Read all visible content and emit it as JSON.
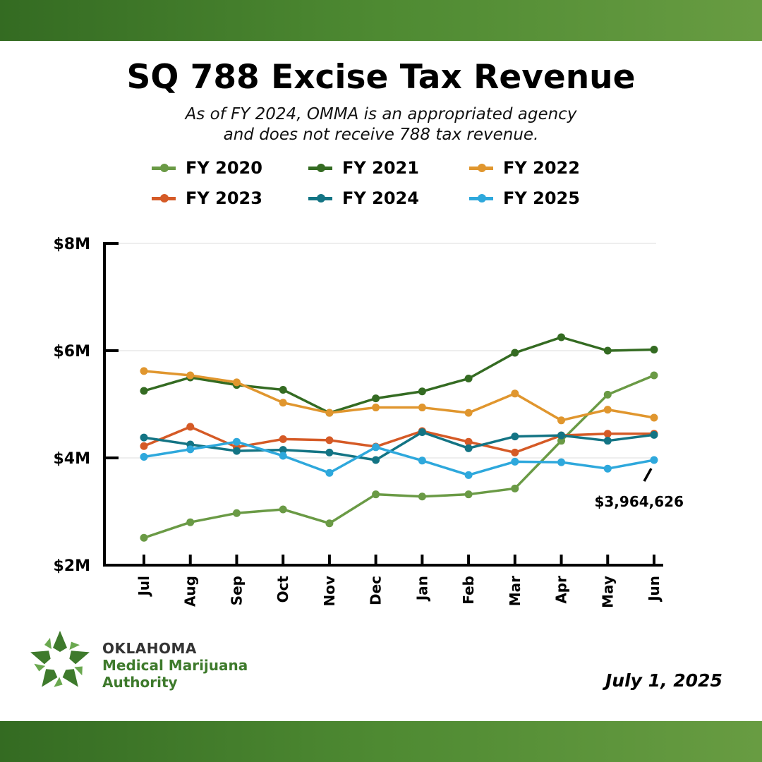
{
  "header": {
    "title": "SQ 788 Excise Tax Revenue",
    "subtitle_line1": "As of FY 2024, OMMA is an appropriated agency",
    "subtitle_line2": "and does not receive 788 tax revenue."
  },
  "footer": {
    "org_line1": "OKLAHOMA",
    "org_line2": "Medical Marijuana",
    "org_line3": "Authority",
    "date": "July 1, 2025"
  },
  "colors": {
    "band": "#4e8a32"
  },
  "chart_data": {
    "type": "line",
    "title": "SQ 788 Excise Tax Revenue",
    "categories": [
      "Jul",
      "Aug",
      "Sep",
      "Oct",
      "Nov",
      "Dec",
      "Jan",
      "Feb",
      "Mar",
      "Apr",
      "May",
      "Jun"
    ],
    "ylim": [
      2,
      8
    ],
    "yticks": [
      {
        "v": 8,
        "label": "$8M"
      },
      {
        "v": 6,
        "label": "$6M"
      },
      {
        "v": 4,
        "label": "$4M"
      },
      {
        "v": 2,
        "label": "$2M"
      }
    ],
    "grid": true,
    "legend_position": "top",
    "series": [
      {
        "name": "FY 2020",
        "color": "#6a9a45",
        "values": [
          2.51,
          2.8,
          2.97,
          3.04,
          2.78,
          3.32,
          3.28,
          3.32,
          3.43,
          4.32,
          5.18,
          5.54
        ]
      },
      {
        "name": "FY 2021",
        "color": "#346b22",
        "values": [
          5.25,
          5.5,
          5.36,
          5.27,
          4.84,
          5.11,
          5.24,
          5.48,
          5.96,
          6.25,
          6.0,
          6.02
        ]
      },
      {
        "name": "FY 2022",
        "color": "#e0962e",
        "values": [
          5.62,
          5.54,
          5.41,
          5.03,
          4.84,
          4.94,
          4.94,
          4.84,
          5.2,
          4.7,
          4.9,
          4.75
        ]
      },
      {
        "name": "FY 2023",
        "color": "#d55a26",
        "values": [
          4.22,
          4.58,
          4.2,
          4.35,
          4.33,
          4.21,
          4.5,
          4.3,
          4.1,
          4.42,
          4.45,
          4.45
        ]
      },
      {
        "name": "FY 2024",
        "color": "#137484",
        "values": [
          4.38,
          4.25,
          4.13,
          4.15,
          4.1,
          3.96,
          4.48,
          4.18,
          4.4,
          4.42,
          4.32,
          4.43
        ]
      },
      {
        "name": "FY 2025",
        "color": "#2ea8dc",
        "values": [
          4.02,
          4.16,
          4.3,
          4.04,
          3.72,
          4.2,
          3.95,
          3.68,
          3.93,
          3.92,
          3.8,
          3.96
        ]
      }
    ],
    "annotation": {
      "label": "$3,964,626",
      "series": "FY 2025",
      "category": "Jun"
    }
  }
}
